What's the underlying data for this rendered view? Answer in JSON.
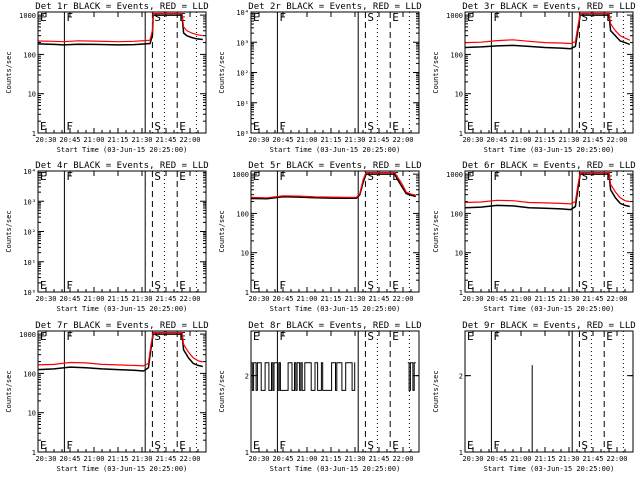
{
  "figure": {
    "xlabel": "Start Time (03-Jun-15 20:25:00)",
    "x_tick_labels": [
      "20:30",
      "20:45",
      "21:00",
      "21:15",
      "21:30",
      "21:45",
      "22:00"
    ],
    "x_ticks_min": [
      5,
      20,
      35,
      50,
      65,
      80,
      95
    ],
    "xlim_min": [
      0,
      105
    ],
    "ylabel": "Counts/sec",
    "colors": {
      "events": "#000000",
      "lld": "#ff0000"
    }
  },
  "markers": [
    {
      "label": "E",
      "t": 0,
      "style": "solid"
    },
    {
      "label": "F",
      "t": 16.5,
      "style": "solid"
    },
    {
      "label": "",
      "t": 67,
      "style": "solid"
    },
    {
      "label": "S",
      "t": 71.5,
      "style": "dashed"
    },
    {
      "label": "",
      "t": 79,
      "style": "dotted"
    },
    {
      "label": "E",
      "t": 87,
      "style": "dashed"
    },
    {
      "label": "",
      "t": 99,
      "style": "dotted"
    }
  ],
  "chart_data": [
    {
      "type": "line",
      "title": "Det 1r BLACK = Events, RED = LLD",
      "yscale": "log",
      "ylim": [
        1,
        1200
      ],
      "y_tick_labels": [
        "1",
        "10",
        "100",
        "1000"
      ],
      "y_tick_values": [
        1,
        10,
        100,
        1000
      ],
      "series": [
        {
          "name": "Events",
          "color": "#000000",
          "t": [
            0,
            10,
            16,
            25,
            35,
            50,
            60,
            67,
            70,
            71.5,
            72,
            90,
            91,
            93,
            96,
            99,
            103
          ],
          "values": [
            185,
            180,
            175,
            182,
            180,
            175,
            178,
            185,
            190,
            300,
            1000,
            1000,
            350,
            300,
            270,
            250,
            240
          ]
        },
        {
          "name": "LLD",
          "color": "#ff0000",
          "t": [
            0,
            10,
            16,
            25,
            35,
            50,
            60,
            67,
            70,
            71.5,
            72,
            90,
            91,
            93,
            96,
            99,
            103
          ],
          "values": [
            220,
            215,
            210,
            222,
            218,
            210,
            215,
            225,
            230,
            400,
            1100,
            1100,
            500,
            400,
            350,
            320,
            300
          ]
        }
      ]
    },
    {
      "type": "line",
      "title": "Det 2r BLACK = Events, RED = LLD",
      "yscale": "log",
      "ylim": [
        1,
        10000
      ],
      "y_tick_labels": [
        "10⁰",
        "10¹",
        "10²",
        "10³",
        "10⁴"
      ],
      "y_tick_values": [
        1,
        10,
        100,
        1000,
        10000
      ],
      "series": []
    },
    {
      "type": "line",
      "title": "Det 3r BLACK = Events, RED = LLD",
      "yscale": "log",
      "ylim": [
        1,
        1200
      ],
      "y_tick_labels": [
        "1",
        "10",
        "100",
        "1000"
      ],
      "y_tick_values": [
        1,
        10,
        100,
        1000
      ],
      "series": [
        {
          "name": "Events",
          "color": "#000000",
          "t": [
            0,
            10,
            20,
            30,
            40,
            50,
            60,
            66,
            69,
            70.5,
            72,
            90,
            91,
            94,
            97,
            100,
            103
          ],
          "values": [
            150,
            155,
            165,
            170,
            160,
            150,
            145,
            140,
            160,
            400,
            1000,
            1000,
            400,
            300,
            220,
            200,
            180
          ]
        },
        {
          "name": "LLD",
          "color": "#ff0000",
          "t": [
            0,
            10,
            20,
            30,
            40,
            50,
            60,
            66,
            69,
            70.5,
            72,
            90,
            91,
            94,
            97,
            100,
            103
          ],
          "values": [
            200,
            205,
            225,
            235,
            215,
            200,
            195,
            190,
            210,
            500,
            1100,
            1100,
            600,
            400,
            300,
            260,
            230
          ]
        }
      ]
    },
    {
      "type": "line",
      "title": "Det 4r BLACK = Events, RED = LLD",
      "yscale": "log",
      "ylim": [
        1,
        10000
      ],
      "y_tick_labels": [
        "10⁰",
        "10¹",
        "10²",
        "10³",
        "10⁴"
      ],
      "y_tick_values": [
        1,
        10,
        100,
        1000,
        10000
      ],
      "series": []
    },
    {
      "type": "line",
      "title": "Det 5r BLACK = Events, RED = LLD",
      "yscale": "log",
      "ylim": [
        1,
        1200
      ],
      "y_tick_labels": [
        "1",
        "10",
        "100",
        "1000"
      ],
      "y_tick_values": [
        1,
        10,
        100,
        1000
      ],
      "series": [
        {
          "name": "Events",
          "color": "#000000",
          "t": [
            0,
            10,
            20,
            30,
            40,
            50,
            60,
            66,
            68,
            70,
            71.5,
            72,
            90,
            91,
            94,
            97,
            100,
            103
          ],
          "values": [
            240,
            235,
            265,
            260,
            250,
            245,
            242,
            245,
            300,
            600,
            900,
            1000,
            1000,
            800,
            500,
            320,
            290,
            270
          ]
        },
        {
          "name": "LLD",
          "color": "#ff0000",
          "t": [
            0,
            10,
            20,
            30,
            40,
            50,
            60,
            66,
            68,
            70,
            71.5,
            72,
            90,
            91,
            94,
            97,
            100,
            103
          ],
          "values": [
            255,
            250,
            280,
            275,
            265,
            260,
            255,
            258,
            320,
            700,
            1000,
            1100,
            1100,
            900,
            600,
            350,
            310,
            290
          ]
        }
      ]
    },
    {
      "type": "line",
      "title": "Det 6r BLACK = Events, RED = LLD",
      "yscale": "log",
      "ylim": [
        1,
        1200
      ],
      "y_tick_labels": [
        "1",
        "10",
        "100",
        "1000"
      ],
      "y_tick_values": [
        1,
        10,
        100,
        1000
      ],
      "series": [
        {
          "name": "Events",
          "color": "#000000",
          "t": [
            0,
            10,
            20,
            30,
            40,
            50,
            60,
            66,
            69,
            70.5,
            72,
            90,
            91,
            94,
            97,
            100,
            103
          ],
          "values": [
            140,
            145,
            160,
            155,
            140,
            135,
            130,
            125,
            150,
            400,
            1000,
            1000,
            400,
            250,
            180,
            160,
            150
          ]
        },
        {
          "name": "LLD",
          "color": "#ff0000",
          "t": [
            0,
            10,
            20,
            30,
            40,
            50,
            60,
            66,
            69,
            70.5,
            72,
            90,
            91,
            94,
            97,
            100,
            103
          ],
          "values": [
            190,
            195,
            215,
            210,
            190,
            185,
            180,
            175,
            200,
            500,
            1100,
            1100,
            550,
            350,
            250,
            210,
            200
          ]
        }
      ]
    },
    {
      "type": "line",
      "title": "Det 7r BLACK = Events, RED = LLD",
      "yscale": "log",
      "ylim": [
        1,
        1200
      ],
      "y_tick_labels": [
        "1",
        "10",
        "100",
        "1000"
      ],
      "y_tick_values": [
        1,
        10,
        100,
        1000
      ],
      "series": [
        {
          "name": "Events",
          "color": "#000000",
          "t": [
            0,
            10,
            20,
            30,
            40,
            50,
            60,
            66,
            69,
            70.5,
            72,
            90,
            91,
            94,
            97,
            100,
            103
          ],
          "values": [
            125,
            130,
            145,
            140,
            130,
            125,
            120,
            115,
            140,
            400,
            1000,
            1000,
            400,
            250,
            180,
            160,
            150
          ]
        },
        {
          "name": "LLD",
          "color": "#ff0000",
          "t": [
            0,
            10,
            20,
            30,
            40,
            50,
            60,
            66,
            69,
            70.5,
            72,
            90,
            91,
            94,
            97,
            100,
            103
          ],
          "values": [
            165,
            170,
            190,
            185,
            170,
            165,
            160,
            155,
            180,
            500,
            1100,
            1100,
            550,
            350,
            250,
            210,
            195
          ]
        }
      ]
    },
    {
      "type": "line",
      "title": "Det 8r BLACK = Events, RED = LLD",
      "yscale": "log",
      "ylim": [
        1,
        3
      ],
      "y_tick_labels": [
        "1",
        "2"
      ],
      "y_tick_values": [
        1,
        2
      ],
      "series": [
        {
          "name": "Events",
          "color": "#000000",
          "style": "step",
          "t_range": [
            0,
            65
          ],
          "t_extra": [
            [
              98,
              103
            ]
          ],
          "levels": [
            1.75,
            2.25
          ]
        }
      ]
    },
    {
      "type": "line",
      "title": "Det 9r BLACK = Events, RED = LLD",
      "yscale": "log",
      "ylim": [
        1,
        3
      ],
      "y_tick_labels": [
        "1",
        "2"
      ],
      "y_tick_values": [
        1,
        2
      ],
      "series": [
        {
          "name": "Events",
          "color": "#000000",
          "style": "spike",
          "t": [
            42
          ],
          "values": [
            2.2
          ]
        }
      ]
    }
  ]
}
